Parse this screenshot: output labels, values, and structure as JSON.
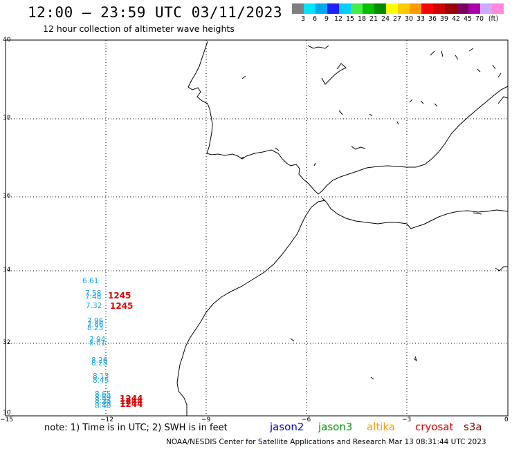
{
  "title": "12:00 – 23:59 UTC 03/11/2023",
  "subtitle": "12 hour collection of altimeter wave heights",
  "colorbar": {
    "colors": [
      "#7f7f7f",
      "#00e5ff",
      "#00a8f0",
      "#1f1fff",
      "#00d0ff",
      "#44ee44",
      "#00c000",
      "#008a00",
      "#ffff00",
      "#ffcc00",
      "#ff9900",
      "#ff0000",
      "#d00000",
      "#9a0000",
      "#7a0060",
      "#aa00aa",
      "#ccaaff",
      "#ff88dd",
      "#000000"
    ],
    "labels": [
      "3",
      "6",
      "9",
      "12",
      "15",
      "18",
      "21",
      "24",
      "27",
      "30",
      "33",
      "36",
      "39",
      "42",
      "45",
      "70",
      "(ft)"
    ]
  },
  "axes": {
    "y_ticks": [
      "40",
      "38",
      "36",
      "34",
      "32",
      "30"
    ],
    "x_ticks": [
      "−15",
      "−12",
      "−9",
      "−6",
      "−3",
      "0"
    ]
  },
  "wave_values": [
    "6.61",
    "7.58",
    "7.48",
    "7.32",
    "7.96",
    "7.86",
    "8.23",
    "7.94",
    "8.01",
    "8.26",
    "8.28",
    "8.13",
    "8.45",
    "8.65",
    "8.59",
    "8.53",
    "8.49",
    "8.40"
  ],
  "satellite_labels": [
    "1245",
    "1245",
    "1244",
    "1244",
    "1244"
  ],
  "note": "note: 1) Time is in UTC; 2) SWH is in feet",
  "legend": [
    {
      "label": "jason2",
      "color": "#0000dd"
    },
    {
      "label": "jason3",
      "color": "#009900"
    },
    {
      "label": "altika",
      "color": "#ff9900"
    },
    {
      "label": "cryosat",
      "color": "#dd0000"
    },
    {
      "label": "s3a",
      "color": "#880000"
    }
  ],
  "credit": "NOAA/NESDIS Center for Satellite Applications and Research    Mar 13 08:31:44 UTC 2023"
}
